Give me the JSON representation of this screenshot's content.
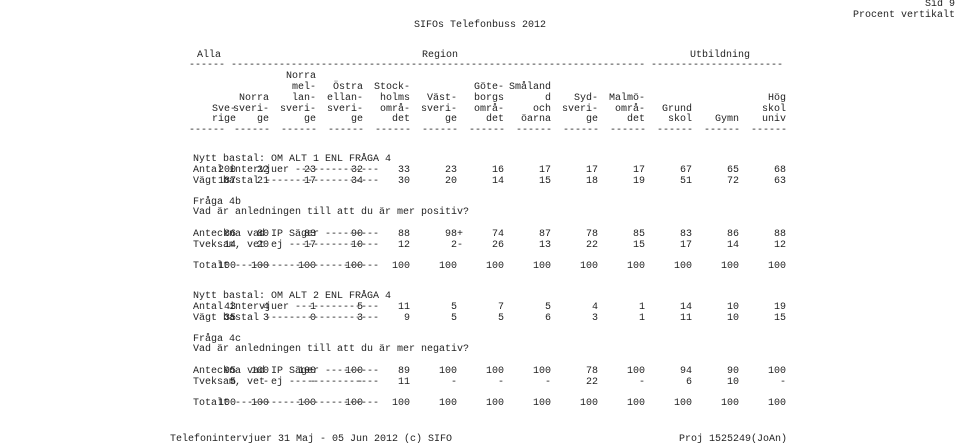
{
  "header": {
    "page": "Sid 9",
    "mode": "Procent vertikalt",
    "title": "SIFOs Telefonbuss 2012"
  },
  "groups": [
    {
      "label": "Alla",
      "rule": "------"
    },
    {
      "label": "Region",
      "rule": "---------------------------------------------------------------------"
    },
    {
      "label": "Utbildning",
      "rule": "----------------------"
    }
  ],
  "columns": [
    [
      "Sve-",
      "rige"
    ],
    [
      "Norra",
      "sveri-",
      "ge"
    ],
    [
      "Norra",
      "mel-",
      "lan-",
      "sveri-",
      "ge"
    ],
    [
      "Östra",
      "ellan-",
      "sveri-",
      "ge"
    ],
    [
      "Stock-",
      "holms",
      "områ-",
      "det"
    ],
    [
      "Väst-",
      "sveri-",
      "ge"
    ],
    [
      "Göte-",
      "borgs",
      "områ-",
      "det"
    ],
    [
      "Småland",
      "d",
      "och",
      "öarna"
    ],
    [
      "Syd-",
      "sveri-",
      "ge"
    ],
    [
      "Malmö-",
      "områ-",
      "det"
    ],
    [
      "Grund",
      "skol"
    ],
    [
      "Gymn"
    ],
    [
      "Hög",
      "skol",
      "univ"
    ]
  ],
  "column_rule": "------",
  "sections": [
    {
      "base": "Nytt bastal: OM ALT 1 ENL FRÅGA 4",
      "counts": [
        {
          "label": "Antal intervjuer --------------",
          "values": [
            200,
            22,
            23,
            32,
            33,
            23,
            16,
            17,
            17,
            17,
            67,
            65,
            68
          ]
        },
        {
          "label": "Vägt bastal -------------------",
          "values": [
            187,
            21,
            17,
            34,
            30,
            20,
            14,
            15,
            18,
            19,
            51,
            72,
            63
          ]
        }
      ],
      "question": {
        "number": "Fråga 4b",
        "text": "Vad är anledningen till att du är mer positiv?"
      },
      "answers": [
        {
          "label": "Anteckna vad IP Säger ---------",
          "values": [
            86,
            80,
            83,
            90,
            88,
            "98+",
            74,
            87,
            78,
            85,
            83,
            86,
            88
          ]
        },
        {
          "label": "Tveksam, vet ej ---------------",
          "values": [
            14,
            20,
            17,
            10,
            12,
            "2-",
            26,
            13,
            22,
            15,
            17,
            14,
            12
          ]
        }
      ],
      "total": {
        "label": "Totalt ------------------------",
        "values": [
          100,
          100,
          100,
          100,
          100,
          100,
          100,
          100,
          100,
          100,
          100,
          100,
          100
        ]
      }
    },
    {
      "base": "Nytt bastal: OM ALT 2 ENL FRÅGA 4",
      "counts": [
        {
          "label": "Antal intervjuer --------------",
          "values": [
            43,
            4,
            1,
            5,
            11,
            5,
            7,
            5,
            4,
            1,
            14,
            10,
            19
          ]
        },
        {
          "label": "Vägt bastal -------------------",
          "values": [
            35,
            3,
            0,
            3,
            9,
            5,
            5,
            6,
            3,
            1,
            11,
            10,
            15
          ]
        }
      ],
      "question": {
        "number": "Fråga 4c",
        "text": "Vad är anledningen till att du är mer negativ?"
      },
      "answers": [
        {
          "label": "Anteckna vad IP Säger ---------",
          "values": [
            95,
            100,
            100,
            100,
            89,
            100,
            100,
            100,
            78,
            100,
            94,
            90,
            100
          ]
        },
        {
          "label": "Tveksam, vet ej ---------------",
          "values": [
            5,
            "-",
            "-",
            "-",
            11,
            "-",
            "-",
            "-",
            22,
            "-",
            6,
            10,
            "-"
          ]
        }
      ],
      "total": {
        "label": "Totalt ------------------------",
        "values": [
          100,
          100,
          100,
          100,
          100,
          100,
          100,
          100,
          100,
          100,
          100,
          100,
          100
        ]
      }
    }
  ],
  "footer": {
    "left": "Telefonintervjuer 31 Maj - 05 Jun 2012 (c) SIFO",
    "right": "Proj 1525249(JoAn)"
  }
}
